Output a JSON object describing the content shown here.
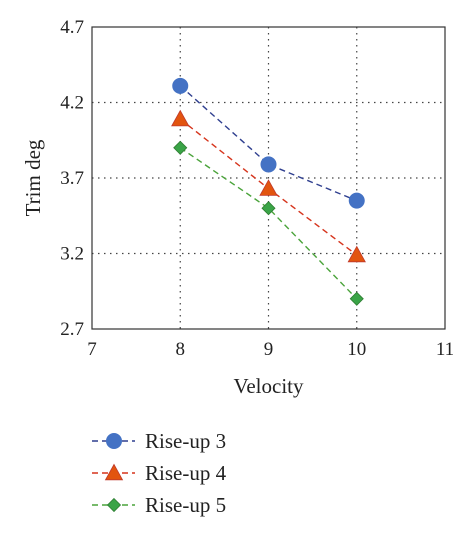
{
  "chart_data": {
    "type": "scatter",
    "title": "",
    "xlabel": "Velocity",
    "ylabel": "Trim deg",
    "xlim": [
      7,
      11
    ],
    "ylim": [
      2.7,
      4.7
    ],
    "xticks": [
      "7",
      "8",
      "9",
      "10",
      "11"
    ],
    "yticks": [
      "2.7",
      "3.2",
      "3.7",
      "4.2",
      "4.7"
    ],
    "grid": "dotted, at inner ticks",
    "legend_position": "bottom-left, below the plot",
    "series": [
      {
        "name": "Rise-up 3",
        "marker": "circle",
        "color": "#4472c4",
        "line_color": "#2f3f8f",
        "x": [
          8,
          9,
          10
        ],
        "y": [
          4.31,
          3.79,
          3.55
        ]
      },
      {
        "name": "Rise-up 4",
        "marker": "triangle",
        "color": "#e2540f",
        "line_color": "#d6341c",
        "x": [
          8,
          9,
          10
        ],
        "y": [
          4.09,
          3.63,
          3.19
        ]
      },
      {
        "name": "Rise-up 5",
        "marker": "diamond",
        "color": "#3aa447",
        "line_color": "#4aa33a",
        "x": [
          8,
          9,
          10
        ],
        "y": [
          3.9,
          3.5,
          2.9
        ]
      }
    ]
  }
}
